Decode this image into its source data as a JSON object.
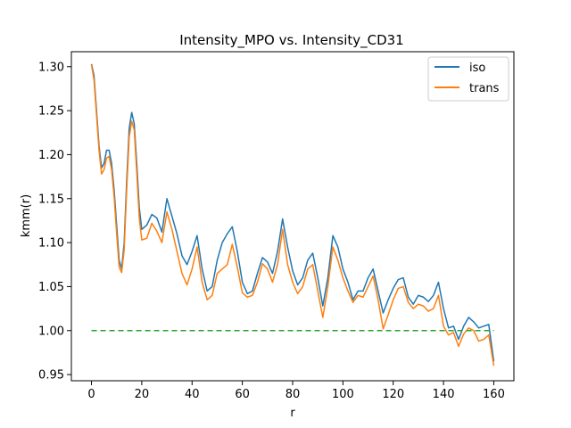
{
  "chart_data": {
    "type": "line",
    "title": "Intensity_MPO vs. Intensity_CD31",
    "xlabel": "r",
    "ylabel": "kmm(r)",
    "xlim": [
      -8,
      168
    ],
    "ylim": [
      0.943,
      1.317
    ],
    "xticks": [
      0,
      20,
      40,
      60,
      80,
      100,
      120,
      140,
      160
    ],
    "yticks": [
      0.95,
      1.0,
      1.05,
      1.1,
      1.15,
      1.2,
      1.25,
      1.3
    ],
    "ytick_labels": [
      "0.95",
      "1.00",
      "1.05",
      "1.10",
      "1.15",
      "1.20",
      "1.25",
      "1.30"
    ],
    "legend_position": "upper-right",
    "grid": false,
    "series": [
      {
        "name": "iso",
        "color": "#1f77b4",
        "style": "solid",
        "x": [
          0,
          1,
          2,
          3,
          4,
          5,
          6,
          7,
          8,
          9,
          10,
          11,
          12,
          13,
          14,
          15,
          16,
          17,
          18,
          19,
          20,
          22,
          24,
          26,
          28,
          30,
          32,
          34,
          36,
          38,
          40,
          42,
          44,
          46,
          48,
          50,
          52,
          54,
          56,
          58,
          60,
          62,
          64,
          66,
          68,
          70,
          72,
          74,
          76,
          78,
          80,
          82,
          84,
          86,
          88,
          90,
          92,
          94,
          96,
          98,
          100,
          102,
          104,
          106,
          108,
          110,
          112,
          114,
          116,
          118,
          120,
          122,
          124,
          126,
          128,
          130,
          132,
          134,
          136,
          138,
          140,
          142,
          144,
          146,
          148,
          150,
          152,
          154,
          156,
          158,
          160
        ],
        "y": [
          1.303,
          1.29,
          1.25,
          1.21,
          1.185,
          1.19,
          1.205,
          1.205,
          1.19,
          1.16,
          1.12,
          1.08,
          1.07,
          1.1,
          1.17,
          1.23,
          1.248,
          1.235,
          1.19,
          1.14,
          1.115,
          1.12,
          1.132,
          1.128,
          1.112,
          1.15,
          1.13,
          1.11,
          1.085,
          1.075,
          1.09,
          1.108,
          1.07,
          1.045,
          1.05,
          1.08,
          1.1,
          1.11,
          1.118,
          1.09,
          1.055,
          1.042,
          1.045,
          1.065,
          1.083,
          1.078,
          1.065,
          1.09,
          1.127,
          1.095,
          1.068,
          1.052,
          1.06,
          1.08,
          1.088,
          1.06,
          1.028,
          1.06,
          1.108,
          1.095,
          1.07,
          1.055,
          1.035,
          1.045,
          1.045,
          1.06,
          1.07,
          1.045,
          1.02,
          1.035,
          1.048,
          1.058,
          1.06,
          1.038,
          1.03,
          1.04,
          1.038,
          1.033,
          1.04,
          1.055,
          1.025,
          1.003,
          1.005,
          0.99,
          1.005,
          1.015,
          1.01,
          1.003,
          1.005,
          1.007,
          0.965
        ]
      },
      {
        "name": "trans",
        "color": "#ff7f0e",
        "style": "solid",
        "x": [
          0,
          1,
          2,
          3,
          4,
          5,
          6,
          7,
          8,
          9,
          10,
          11,
          12,
          13,
          14,
          15,
          16,
          17,
          18,
          19,
          20,
          22,
          24,
          26,
          28,
          30,
          32,
          34,
          36,
          38,
          40,
          42,
          44,
          46,
          48,
          50,
          52,
          54,
          56,
          58,
          60,
          62,
          64,
          66,
          68,
          70,
          72,
          74,
          76,
          78,
          80,
          82,
          84,
          86,
          88,
          90,
          92,
          94,
          96,
          98,
          100,
          102,
          104,
          106,
          108,
          110,
          112,
          114,
          116,
          118,
          120,
          122,
          124,
          126,
          128,
          130,
          132,
          134,
          136,
          138,
          140,
          142,
          144,
          146,
          148,
          150,
          152,
          154,
          156,
          158,
          160
        ],
        "y": [
          1.302,
          1.285,
          1.245,
          1.205,
          1.178,
          1.183,
          1.196,
          1.198,
          1.183,
          1.152,
          1.11,
          1.072,
          1.066,
          1.092,
          1.16,
          1.22,
          1.238,
          1.228,
          1.18,
          1.128,
          1.103,
          1.105,
          1.122,
          1.113,
          1.1,
          1.135,
          1.115,
          1.09,
          1.065,
          1.052,
          1.07,
          1.095,
          1.055,
          1.035,
          1.04,
          1.065,
          1.07,
          1.075,
          1.098,
          1.072,
          1.043,
          1.038,
          1.04,
          1.055,
          1.076,
          1.07,
          1.055,
          1.075,
          1.115,
          1.075,
          1.055,
          1.042,
          1.05,
          1.07,
          1.075,
          1.045,
          1.015,
          1.05,
          1.095,
          1.08,
          1.06,
          1.045,
          1.032,
          1.04,
          1.038,
          1.05,
          1.062,
          1.035,
          1.002,
          1.018,
          1.035,
          1.048,
          1.05,
          1.032,
          1.025,
          1.03,
          1.028,
          1.022,
          1.025,
          1.04,
          1.005,
          0.995,
          0.998,
          0.982,
          0.996,
          1.003,
          1.0,
          0.988,
          0.99,
          0.995,
          0.96
        ]
      },
      {
        "name": "",
        "color": "#2ca02c",
        "style": "dashed",
        "x": [
          0,
          160
        ],
        "y": [
          1.0,
          1.0
        ]
      }
    ]
  }
}
